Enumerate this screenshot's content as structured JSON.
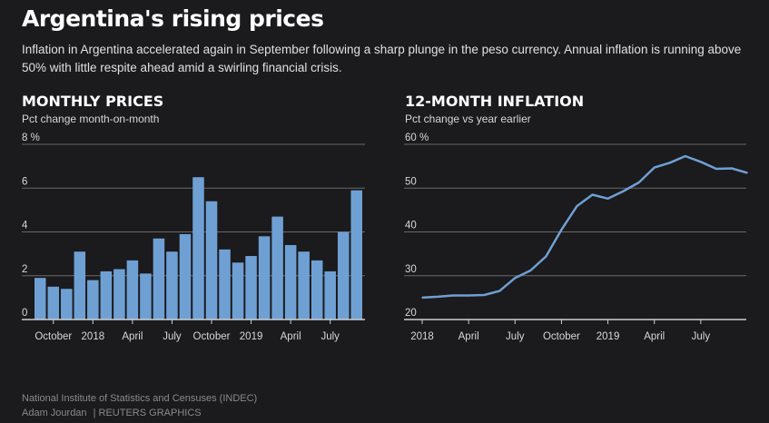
{
  "title": "Argentina's rising prices",
  "subtitle": "Inflation in Argentina accelerated again in September following a sharp plunge in the peso currency. Annual inflation is running above 50% with little respite ahead amid a swirling financial crisis.",
  "colors": {
    "background": "#1b1a1c",
    "series": "#6fa0d4",
    "grid": "#6a6a6a",
    "axis": "#cfcfcf"
  },
  "source": "National Institute of Statistics and Censuses (INDEC)",
  "credit_author": "Adam Jourdan",
  "credit_org": "| REUTERS GRAPHICS",
  "chart_data": [
    {
      "type": "bar",
      "title": "MONTHLY PRICES",
      "subtitle": "Pct change month-on-month",
      "unit": "%",
      "ylim": [
        0,
        8
      ],
      "yticks": [
        0,
        2,
        4,
        6,
        8
      ],
      "x_tick_labels": [
        {
          "label": "October",
          "index": 1
        },
        {
          "label": "2018",
          "index": 4
        },
        {
          "label": "April",
          "index": 7
        },
        {
          "label": "July",
          "index": 10
        },
        {
          "label": "October",
          "index": 13
        },
        {
          "label": "2019",
          "index": 16
        },
        {
          "label": "April",
          "index": 19
        },
        {
          "label": "July",
          "index": 22
        }
      ],
      "values": [
        1.9,
        1.5,
        1.4,
        3.1,
        1.8,
        2.2,
        2.3,
        2.7,
        2.1,
        3.7,
        3.1,
        3.9,
        6.5,
        5.4,
        3.2,
        2.6,
        2.9,
        3.8,
        4.7,
        3.4,
        3.1,
        2.7,
        2.2,
        4.0,
        5.9
      ],
      "grid": true
    },
    {
      "type": "line",
      "title": "12-MONTH INFLATION",
      "subtitle": "Pct change vs year earlier",
      "unit": "%",
      "ylim": [
        20,
        60
      ],
      "yticks": [
        20,
        30,
        40,
        50,
        60
      ],
      "x_tick_labels": [
        {
          "label": "2018",
          "index": 0
        },
        {
          "label": "April",
          "index": 3
        },
        {
          "label": "July",
          "index": 6
        },
        {
          "label": "October",
          "index": 9
        },
        {
          "label": "2019",
          "index": 12
        },
        {
          "label": "April",
          "index": 15
        },
        {
          "label": "July",
          "index": 18
        }
      ],
      "values": [
        25.0,
        25.2,
        25.5,
        25.5,
        25.6,
        26.5,
        29.5,
        31.2,
        34.4,
        40.5,
        45.9,
        48.5,
        47.6,
        49.3,
        51.3,
        54.7,
        55.8,
        57.3,
        56.0,
        54.4,
        54.5,
        53.5
      ],
      "grid": true
    }
  ]
}
